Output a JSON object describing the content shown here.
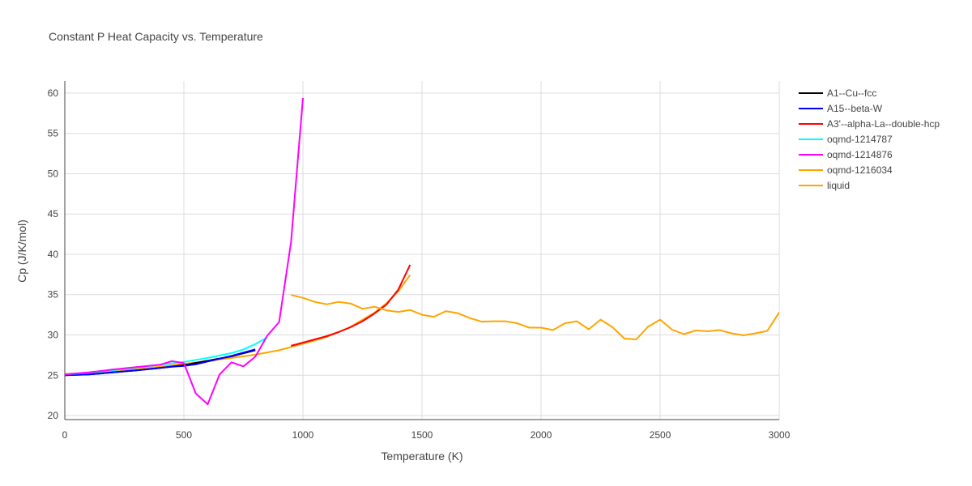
{
  "chart_data": {
    "type": "line",
    "title": "Constant P Heat Capacity vs. Temperature",
    "xlabel": "Temperature (K)",
    "ylabel": "Cp (J/K/mol)",
    "xlim": [
      0,
      3000
    ],
    "ylim": [
      19.5,
      61.5
    ],
    "xticks": [
      0,
      500,
      1000,
      1500,
      2000,
      2500,
      3000
    ],
    "yticks": [
      20,
      25,
      30,
      35,
      40,
      45,
      50,
      55,
      60
    ],
    "grid": true,
    "legend_position": "top-right",
    "series": [
      {
        "name": "A1--Cu--fcc",
        "color": "#000000",
        "x": [
          0,
          100,
          200,
          300,
          400,
          500,
          600,
          700,
          800
        ],
        "y": [
          25.0,
          25.1,
          25.35,
          25.6,
          25.9,
          26.25,
          26.8,
          27.35,
          28.1
        ]
      },
      {
        "name": "A15--beta-W",
        "color": "#0000ff",
        "x": [
          0,
          100,
          200,
          300,
          400,
          450,
          500,
          550,
          600,
          700,
          800
        ],
        "y": [
          25.0,
          25.1,
          25.35,
          25.6,
          25.9,
          26.05,
          26.15,
          26.35,
          26.7,
          27.4,
          28.2
        ]
      },
      {
        "name": "A3'--alpha-La--double-hcp",
        "color": "#ff0000",
        "x": [
          950,
          1000,
          1050,
          1100,
          1150,
          1200,
          1250,
          1300,
          1350,
          1400,
          1450
        ],
        "y": [
          28.65,
          29.05,
          29.45,
          29.85,
          30.35,
          30.95,
          31.7,
          32.65,
          33.75,
          35.6,
          38.7
        ]
      },
      {
        "name": "oqmd-1214787",
        "color": "#00ffff",
        "x": [
          0,
          100,
          200,
          300,
          400,
          500,
          600,
          700,
          750,
          800,
          850
        ],
        "y": [
          25.1,
          25.3,
          25.6,
          25.95,
          26.3,
          26.65,
          27.15,
          27.75,
          28.2,
          28.85,
          29.7
        ]
      },
      {
        "name": "oqmd-1214876",
        "color": "#ff00ff",
        "x": [
          0,
          100,
          200,
          300,
          400,
          450,
          500,
          550,
          600,
          650,
          700,
          750,
          800,
          850,
          900,
          950,
          1000
        ],
        "y": [
          25.1,
          25.35,
          25.7,
          26.0,
          26.3,
          26.75,
          26.5,
          22.75,
          21.4,
          25.1,
          26.6,
          26.1,
          27.3,
          29.9,
          31.6,
          41.5,
          59.4
        ]
      },
      {
        "name": "oqmd-1216034",
        "color": "#ffa500",
        "x": [
          0,
          100,
          200,
          300,
          400,
          500,
          600,
          700,
          800,
          900,
          1000,
          1100,
          1200,
          1300,
          1350,
          1400,
          1450
        ],
        "y": [
          25.15,
          25.3,
          25.5,
          25.75,
          26.05,
          26.4,
          26.75,
          27.15,
          27.55,
          28.1,
          28.9,
          29.75,
          31.0,
          32.75,
          33.9,
          35.4,
          37.45
        ]
      },
      {
        "name": "liquid",
        "color": "#ffa500",
        "x": [
          950,
          1000,
          1050,
          1100,
          1150,
          1200,
          1250,
          1300,
          1350,
          1400,
          1450,
          1500,
          1550,
          1600,
          1650,
          1700,
          1750,
          1800,
          1850,
          1900,
          1950,
          2000,
          2050,
          2100,
          2150,
          2200,
          2250,
          2300,
          2350,
          2400,
          2450,
          2500,
          2550,
          2600,
          2650,
          2700,
          2750,
          2800,
          2850,
          2900,
          2950,
          3000
        ],
        "y": [
          34.95,
          34.6,
          34.1,
          33.8,
          34.1,
          33.9,
          33.25,
          33.5,
          33.05,
          32.85,
          33.1,
          32.5,
          32.25,
          32.95,
          32.7,
          32.1,
          31.65,
          31.7,
          31.7,
          31.45,
          30.9,
          30.9,
          30.6,
          31.45,
          31.7,
          30.7,
          31.9,
          30.95,
          29.55,
          29.45,
          31.05,
          31.9,
          30.65,
          30.1,
          30.55,
          30.45,
          30.6,
          30.2,
          29.95,
          30.2,
          30.5,
          32.8
        ]
      }
    ]
  }
}
